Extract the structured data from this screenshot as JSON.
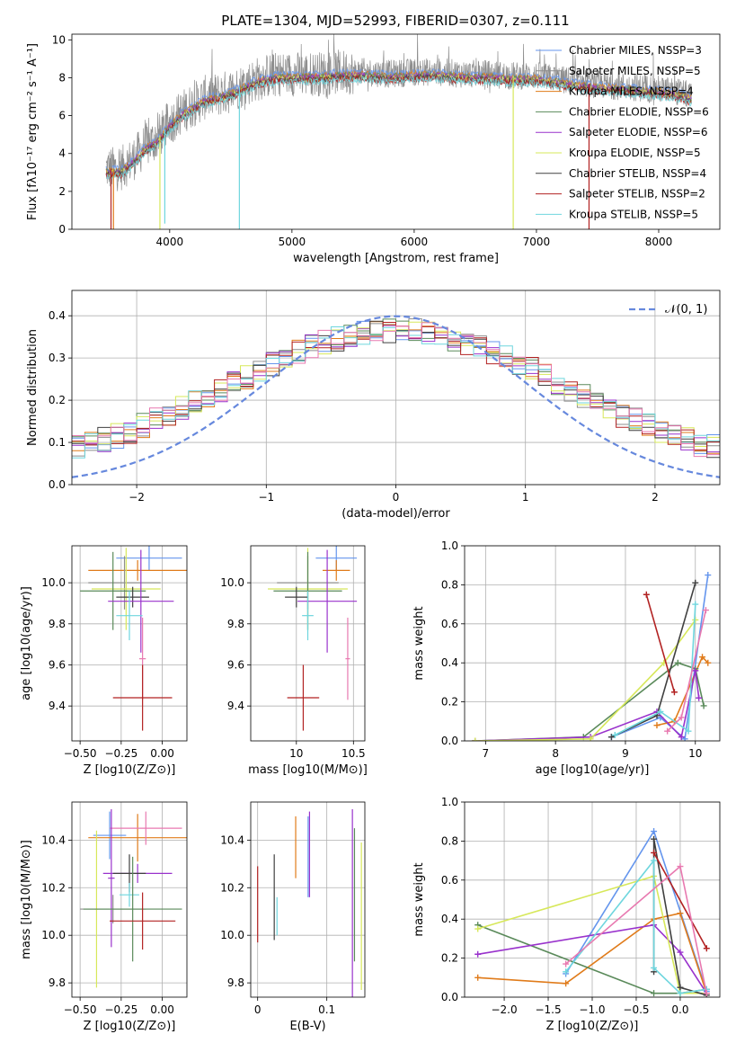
{
  "figure": {
    "title": "PLATE=1304, MJD=52993, FIBERID=0307, z=0.111"
  },
  "colors": {
    "series": [
      "#6495ed",
      "#8e8e8e",
      "#e07b1a",
      "#5a8a5a",
      "#9932cc",
      "#d7e85a",
      "#404040",
      "#b22222",
      "#6fd6de",
      "#e879b0"
    ]
  },
  "chart_data": [
    {
      "id": "spectrum",
      "type": "line",
      "title": "PLATE=1304, MJD=52993, FIBERID=0307, z=0.111",
      "xlabel": "wavelength [Angstrom, rest frame]",
      "ylabel": "Flux [fλ10⁻¹⁷ erg cm⁻² s⁻¹ A⁻¹]",
      "xlim": [
        3200,
        8500
      ],
      "ylim": [
        0,
        10.3
      ],
      "xticks": [
        4000,
        5000,
        6000,
        7000,
        8000
      ],
      "yticks": [
        0,
        2,
        4,
        6,
        8,
        10
      ],
      "grid": false,
      "legend_position": "right",
      "legend": [
        {
          "label": "Chabrier MILES, NSSP=3",
          "color": "#6495ed"
        },
        {
          "label": "Salpeter MILES, NSSP=5",
          "color": "#8e8e8e"
        },
        {
          "label": "Kroupa MILES, NSSP=4",
          "color": "#e07b1a"
        },
        {
          "label": "Chabrier ELODIE, NSSP=6",
          "color": "#5a8a5a"
        },
        {
          "label": "Salpeter ELODIE, NSSP=6",
          "color": "#9932cc"
        },
        {
          "label": "Kroupa ELODIE, NSSP=5",
          "color": "#d7e85a"
        },
        {
          "label": "Chabrier STELIB, NSSP=4",
          "color": "#404040"
        },
        {
          "label": "Salpeter STELIB, NSSP=2",
          "color": "#b22222"
        },
        {
          "label": "Kroupa STELIB, NSSP=5",
          "color": "#6fd6de"
        }
      ],
      "data_continuum": {
        "x": [
          3480,
          3600,
          3700,
          3800,
          3900,
          4000,
          4100,
          4200,
          4300,
          4400,
          4500,
          4600,
          4700,
          4800,
          4900,
          5000,
          5200,
          5400,
          5600,
          5800,
          6000,
          6200,
          6400,
          6600,
          6800,
          7000,
          7200,
          7400,
          7600,
          7800,
          8000,
          8200,
          8270
        ],
        "y": [
          3.2,
          3.2,
          3.7,
          4.4,
          4.8,
          5.6,
          6.2,
          6.6,
          7.0,
          7.1,
          7.3,
          7.6,
          7.9,
          8.1,
          8.2,
          8.2,
          8.2,
          8.3,
          8.3,
          8.2,
          8.3,
          8.3,
          8.2,
          8.2,
          8.1,
          8.1,
          7.9,
          7.7,
          7.6,
          7.5,
          7.4,
          7.2,
          7.0
        ]
      },
      "dips": [
        {
          "x": 3520,
          "color": "#b22222",
          "y": 0
        },
        {
          "x": 3540,
          "color": "#e07b1a",
          "y": 0
        },
        {
          "x": 3920,
          "color": "#d7e85a",
          "y": 0
        },
        {
          "x": 3960,
          "color": "#6fd6de",
          "y": 0.3
        },
        {
          "x": 4570,
          "color": "#6fd6de",
          "y": 0
        },
        {
          "x": 6810,
          "color": "#d7e85a",
          "y": 0
        },
        {
          "x": 7430,
          "color": "#b22222",
          "y": 0
        }
      ]
    },
    {
      "id": "residuals",
      "type": "histogram",
      "xlabel": "(data-model)/error",
      "ylabel": "Normed distribution",
      "xlim": [
        -2.5,
        2.5
      ],
      "ylim": [
        0,
        0.46
      ],
      "xticks": [
        -2,
        -1,
        0,
        1,
        2
      ],
      "yticks": [
        0.0,
        0.1,
        0.2,
        0.3,
        0.4
      ],
      "grid": true,
      "legend_position": "top-right",
      "reference_curve": {
        "label": "𝒩(0, 1)",
        "mean": 0,
        "sigma": 1,
        "color": "#6688dd"
      },
      "bin_width": 0.1,
      "series_count": 10
    },
    {
      "id": "age-vs-Z",
      "type": "errorbar",
      "xlabel": "Z [log10(Z/Z⊙)]",
      "ylabel": "age  [log10(age/yr)]",
      "xlim": [
        -0.55,
        0.15
      ],
      "ylim": [
        9.23,
        10.18
      ],
      "xticks": [
        -0.5,
        -0.25,
        0.0
      ],
      "xticklabels": [
        "−0.50",
        "−0.25",
        "0.00"
      ],
      "yticks": [
        9.4,
        9.6,
        9.8,
        10.0
      ],
      "grid": true,
      "points": [
        {
          "x": -0.08,
          "y": 10.12,
          "xerr": 0.2,
          "yerr": 0.06,
          "color": "#6495ed"
        },
        {
          "x": -0.15,
          "y": 10.06,
          "xerr": 0.3,
          "yerr": 0.05,
          "color": "#e07b1a"
        },
        {
          "x": -0.23,
          "y": 10.0,
          "xerr": 0.22,
          "yerr": 0.13,
          "color": "#8e8e8e"
        },
        {
          "x": -0.22,
          "y": 9.97,
          "xerr": 0.21,
          "yerr": 0.2,
          "color": "#d7e85a"
        },
        {
          "x": -0.3,
          "y": 9.96,
          "xerr": 0.2,
          "yerr": 0.19,
          "color": "#5a8a5a"
        },
        {
          "x": -0.18,
          "y": 9.93,
          "xerr": 0.1,
          "yerr": 0.05,
          "color": "#404040"
        },
        {
          "x": -0.13,
          "y": 9.91,
          "xerr": 0.2,
          "yerr": 0.25,
          "color": "#9932cc"
        },
        {
          "x": -0.2,
          "y": 9.84,
          "xerr": 0.08,
          "yerr": 0.12,
          "color": "#6fd6de"
        },
        {
          "x": -0.12,
          "y": 9.63,
          "xerr": 0.02,
          "yerr": 0.2,
          "color": "#e879b0"
        },
        {
          "x": -0.12,
          "y": 9.44,
          "xerr": 0.18,
          "yerr": 0.16,
          "color": "#b22222"
        }
      ]
    },
    {
      "id": "age-vs-mass",
      "type": "errorbar",
      "xlabel": "mass [log10(M/M⊙)]",
      "ylabel": "",
      "xlim": [
        9.6,
        10.6
      ],
      "ylim": [
        9.23,
        10.18
      ],
      "xticks": [
        10.0,
        10.5
      ],
      "yticks": [
        9.4,
        9.6,
        9.8,
        10.0
      ],
      "grid": true,
      "points": [
        {
          "x": 10.35,
          "y": 10.12,
          "xerr": 0.18,
          "yerr": 0.06,
          "color": "#6495ed"
        },
        {
          "x": 10.35,
          "y": 10.06,
          "xerr": 0.12,
          "yerr": 0.05,
          "color": "#e07b1a"
        },
        {
          "x": 10.1,
          "y": 10.0,
          "xerr": 0.27,
          "yerr": 0.13,
          "color": "#8e8e8e"
        },
        {
          "x": 10.1,
          "y": 9.97,
          "xerr": 0.35,
          "yerr": 0.2,
          "color": "#d7e85a"
        },
        {
          "x": 10.1,
          "y": 9.96,
          "xerr": 0.3,
          "yerr": 0.19,
          "color": "#5a8a5a"
        },
        {
          "x": 10.0,
          "y": 9.93,
          "xerr": 0.1,
          "yerr": 0.05,
          "color": "#404040"
        },
        {
          "x": 10.27,
          "y": 9.91,
          "xerr": 0.26,
          "yerr": 0.25,
          "color": "#9932cc"
        },
        {
          "x": 10.1,
          "y": 9.84,
          "xerr": 0.05,
          "yerr": 0.12,
          "color": "#6fd6de"
        },
        {
          "x": 10.45,
          "y": 9.63,
          "xerr": 0.02,
          "yerr": 0.2,
          "color": "#e879b0"
        },
        {
          "x": 10.06,
          "y": 9.44,
          "xerr": 0.14,
          "yerr": 0.16,
          "color": "#b22222"
        }
      ]
    },
    {
      "id": "weight-vs-age",
      "type": "line",
      "xlabel": "age  [log10(age/yr)]",
      "ylabel": "mass weight",
      "xlim": [
        6.7,
        10.35
      ],
      "ylim": [
        0,
        1.0
      ],
      "xticks": [
        7,
        8,
        9,
        10
      ],
      "yticks": [
        0.0,
        0.2,
        0.4,
        0.6,
        0.8,
        1.0
      ],
      "grid": true,
      "series": [
        {
          "color": "#6495ed",
          "x": [
            8.8,
            9.5,
            9.85,
            10.18
          ],
          "y": [
            0.02,
            0.12,
            0.01,
            0.85
          ]
        },
        {
          "color": "#e07b1a",
          "x": [
            9.45,
            9.7,
            10.1,
            10.18
          ],
          "y": [
            0.08,
            0.1,
            0.43,
            0.4
          ]
        },
        {
          "color": "#5a8a5a",
          "x": [
            6.85,
            8.4,
            9.75,
            10.0,
            10.12
          ],
          "y": [
            0.0,
            0.02,
            0.4,
            0.37,
            0.18
          ]
        },
        {
          "color": "#9932cc",
          "x": [
            6.85,
            8.5,
            9.45,
            9.8,
            10.0,
            10.05
          ],
          "y": [
            0.0,
            0.02,
            0.15,
            0.02,
            0.36,
            0.22
          ]
        },
        {
          "color": "#d7e85a",
          "x": [
            6.85,
            8.5,
            9.55,
            10.0
          ],
          "y": [
            0.0,
            0.01,
            0.4,
            0.62
          ]
        },
        {
          "color": "#404040",
          "x": [
            8.8,
            9.45,
            10.0
          ],
          "y": [
            0.02,
            0.13,
            0.81
          ]
        },
        {
          "color": "#b22222",
          "x": [
            9.3,
            9.7
          ],
          "y": [
            0.75,
            0.25
          ]
        },
        {
          "color": "#6fd6de",
          "x": [
            8.85,
            9.5,
            9.9,
            10.0
          ],
          "y": [
            0.03,
            0.15,
            0.05,
            0.7
          ]
        },
        {
          "color": "#e879b0",
          "x": [
            9.6,
            9.8,
            10.15
          ],
          "y": [
            0.05,
            0.12,
            0.67
          ]
        }
      ]
    },
    {
      "id": "mass-vs-Z",
      "type": "errorbar",
      "xlabel": "Z [log10(Z/Z⊙)]",
      "ylabel": "mass [log10(M/M⊙)]",
      "xlim": [
        -0.55,
        0.15
      ],
      "ylim": [
        9.74,
        10.56
      ],
      "xticks": [
        -0.5,
        -0.25,
        0.0
      ],
      "xticklabels": [
        "−0.50",
        "−0.25",
        "0.00"
      ],
      "yticks": [
        9.8,
        10.0,
        10.2,
        10.4
      ],
      "grid": true,
      "points": [
        {
          "x": -0.32,
          "y": 10.42,
          "xerr": 0.1,
          "yerr": 0.1,
          "color": "#6495ed"
        },
        {
          "x": -0.15,
          "y": 10.41,
          "xerr": 0.3,
          "yerr": 0.1,
          "color": "#e07b1a"
        },
        {
          "x": -0.1,
          "y": 10.45,
          "xerr": 0.22,
          "yerr": 0.07,
          "color": "#e879b0"
        },
        {
          "x": -0.31,
          "y": 10.24,
          "xerr": 0.02,
          "yerr": 0.29,
          "color": "#9932cc"
        },
        {
          "x": -0.15,
          "y": 10.26,
          "xerr": 0.21,
          "yerr": 0.04,
          "color": "#9932cc"
        },
        {
          "x": -0.2,
          "y": 10.26,
          "xerr": 0.1,
          "yerr": 0.08,
          "color": "#404040"
        },
        {
          "x": -0.2,
          "y": 10.17,
          "xerr": 0.06,
          "yerr": 0.05,
          "color": "#6fd6de"
        },
        {
          "x": -0.3,
          "y": 10.11,
          "xerr": 0.2,
          "yerr": 0.06,
          "color": "#8e8e8e"
        },
        {
          "x": -0.4,
          "y": 10.11,
          "xerr": 0.01,
          "yerr": 0.33,
          "color": "#d7e85a"
        },
        {
          "x": -0.18,
          "y": 10.11,
          "xerr": 0.3,
          "yerr": 0.22,
          "color": "#5a8a5a"
        },
        {
          "x": -0.12,
          "y": 10.06,
          "xerr": 0.2,
          "yerr": 0.12,
          "color": "#b22222"
        }
      ]
    },
    {
      "id": "mass-vs-ebv",
      "type": "errorbar",
      "xlabel": "E(B-V)",
      "ylabel": "",
      "xlim": [
        -0.01,
        0.155
      ],
      "ylim": [
        9.74,
        10.56
      ],
      "xticks": [
        0.0,
        0.1
      ],
      "yticks": [
        9.8,
        10.0,
        10.2,
        10.4
      ],
      "grid": true,
      "points": [
        {
          "x": 0.0,
          "y": 10.13,
          "xerr": 0,
          "yerr": 0.16,
          "color": "#b22222"
        },
        {
          "x": 0.024,
          "y": 10.16,
          "xerr": 0,
          "yerr": 0.18,
          "color": "#404040"
        },
        {
          "x": 0.028,
          "y": 10.08,
          "xerr": 0,
          "yerr": 0.08,
          "color": "#6fd6de"
        },
        {
          "x": 0.055,
          "y": 10.37,
          "xerr": 0,
          "yerr": 0.13,
          "color": "#e07b1a"
        },
        {
          "x": 0.073,
          "y": 10.33,
          "xerr": 0,
          "yerr": 0.17,
          "color": "#6495ed"
        },
        {
          "x": 0.075,
          "y": 10.34,
          "xerr": 0,
          "yerr": 0.18,
          "color": "#9932cc"
        },
        {
          "x": 0.137,
          "y": 10.13,
          "xerr": 0,
          "yerr": 0.4,
          "color": "#9932cc"
        },
        {
          "x": 0.14,
          "y": 10.17,
          "xerr": 0,
          "yerr": 0.28,
          "color": "#5a8a5a"
        },
        {
          "x": 0.15,
          "y": 10.08,
          "xerr": 0,
          "yerr": 0.31,
          "color": "#d7e85a"
        }
      ]
    },
    {
      "id": "weight-vs-Z",
      "type": "line",
      "xlabel": "Z [log10(Z/Z⊙)]",
      "ylabel": "mass weight",
      "xlim": [
        -2.45,
        0.45
      ],
      "ylim": [
        0,
        1.0
      ],
      "xticks": [
        -2.0,
        -1.5,
        -1.0,
        -0.5,
        0.0
      ],
      "xticklabels": [
        "−2.0",
        "−1.5",
        "−1.0",
        "−0.5",
        "0.0"
      ],
      "yticks": [
        0.0,
        0.2,
        0.4,
        0.6,
        0.8,
        1.0
      ],
      "grid": true,
      "series": [
        {
          "color": "#6495ed",
          "x": [
            -1.3,
            -0.3,
            0.3
          ],
          "y": [
            0.12,
            0.85,
            0.03
          ]
        },
        {
          "color": "#e07b1a",
          "x": [
            -2.3,
            -1.3,
            -0.3,
            0.0,
            0.3
          ],
          "y": [
            0.1,
            0.07,
            0.4,
            0.43,
            0.02
          ]
        },
        {
          "color": "#5a8a5a",
          "x": [
            -2.3,
            -0.3,
            0.0,
            0.3
          ],
          "y": [
            0.37,
            0.02,
            0.02,
            0.04
          ]
        },
        {
          "color": "#9932cc",
          "x": [
            -2.3,
            -0.3,
            0.0,
            0.3
          ],
          "y": [
            0.22,
            0.37,
            0.23,
            0.02
          ]
        },
        {
          "color": "#d7e85a",
          "x": [
            -2.3,
            -0.3,
            0.0,
            0.3
          ],
          "y": [
            0.35,
            0.62,
            0.02,
            0.02
          ]
        },
        {
          "color": "#404040",
          "x": [
            -0.3,
            -0.3,
            0.0,
            0.3
          ],
          "y": [
            0.13,
            0.81,
            0.05,
            0.01
          ]
        },
        {
          "color": "#b22222",
          "x": [
            -0.3,
            0.3
          ],
          "y": [
            0.74,
            0.25
          ]
        },
        {
          "color": "#6fd6de",
          "x": [
            -1.3,
            -0.3,
            -0.3,
            0.0,
            0.3
          ],
          "y": [
            0.13,
            0.7,
            0.15,
            0.02,
            0.04
          ]
        },
        {
          "color": "#e879b0",
          "x": [
            -1.3,
            0.0,
            0.3
          ],
          "y": [
            0.17,
            0.67,
            0.02
          ]
        }
      ]
    }
  ]
}
